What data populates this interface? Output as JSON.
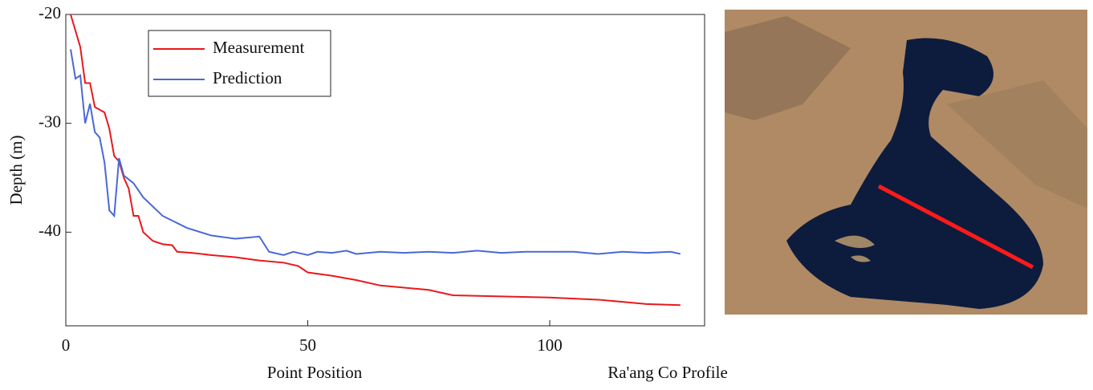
{
  "chart_data": {
    "type": "line",
    "xlabel": "Point Position",
    "ylabel": "Depth (m)",
    "caption": "Ra'ang Co Profile",
    "xlim": [
      0,
      132
    ],
    "ylim": [
      -48.6,
      -20
    ],
    "xticks": [
      0,
      50,
      100
    ],
    "yticks": [
      -20,
      -30,
      -40
    ],
    "legend": "upper left",
    "series": [
      {
        "name": "Measurement",
        "color": "#e8191d",
        "x": [
          1,
          3,
          4,
          5,
          6,
          8,
          9,
          10,
          11,
          12,
          13,
          14,
          15,
          16,
          18,
          20,
          22,
          23,
          26,
          30,
          35,
          40,
          45,
          48,
          50,
          55,
          60,
          65,
          70,
          75,
          80,
          90,
          100,
          110,
          115,
          120,
          127
        ],
        "values": [
          -20,
          -23,
          -26.3,
          -26.3,
          -28.5,
          -29,
          -30.5,
          -33,
          -33.5,
          -35,
          -36,
          -38.5,
          -38.5,
          -40,
          -40.8,
          -41.1,
          -41.2,
          -41.8,
          -41.9,
          -42.1,
          -42.3,
          -42.6,
          -42.8,
          -43.1,
          -43.7,
          -44.0,
          -44.4,
          -44.9,
          -45.1,
          -45.3,
          -45.8,
          -45.9,
          -46.0,
          -46.2,
          -46.4,
          -46.6,
          -46.7
        ]
      },
      {
        "name": "Prediction",
        "color": "#4a68d6",
        "x": [
          1,
          2,
          3,
          4,
          5,
          6,
          7,
          8,
          9,
          10,
          11,
          12,
          14,
          16,
          20,
          25,
          30,
          35,
          40,
          42,
          45,
          47,
          50,
          52,
          55,
          58,
          60,
          65,
          70,
          75,
          80,
          85,
          90,
          95,
          100,
          105,
          110,
          115,
          120,
          125,
          127
        ],
        "values": [
          -23.2,
          -25.9,
          -25.6,
          -30,
          -28.2,
          -30.8,
          -31.3,
          -33.6,
          -38,
          -38.5,
          -33.2,
          -34.8,
          -35.5,
          -36.8,
          -38.5,
          -39.6,
          -40.3,
          -40.6,
          -40.4,
          -41.8,
          -42.1,
          -41.8,
          -42.1,
          -41.8,
          -41.9,
          -41.7,
          -42.0,
          -41.8,
          -41.9,
          -41.8,
          -41.9,
          -41.7,
          -41.9,
          -41.8,
          -41.8,
          -41.8,
          -42.0,
          -41.8,
          -41.9,
          -41.8,
          -42.0
        ]
      }
    ]
  }
}
